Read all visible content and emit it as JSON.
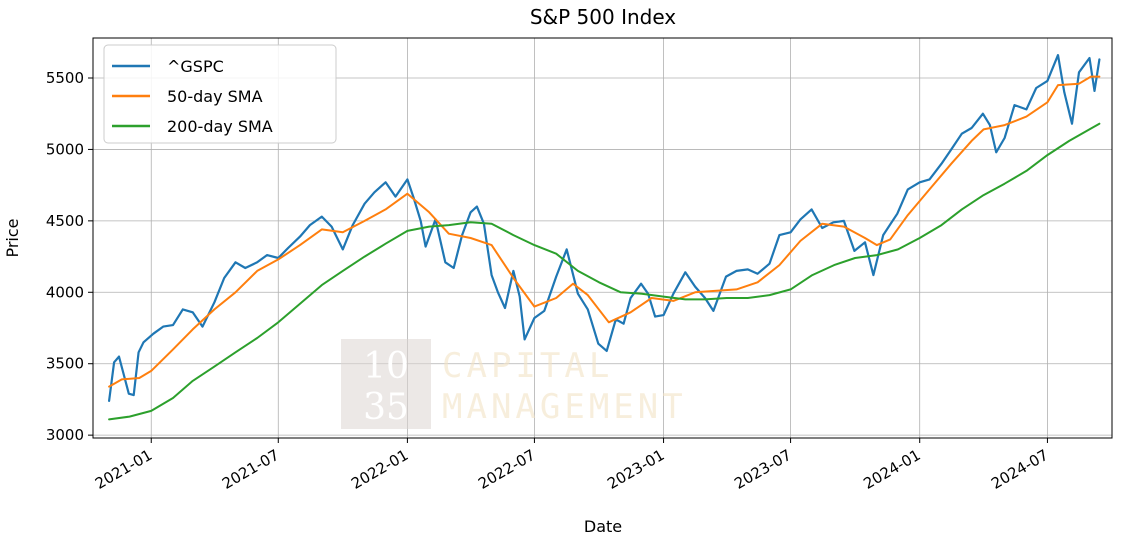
{
  "chart_data": {
    "type": "line",
    "title": "S&P 500 Index",
    "xlabel": "Date",
    "ylabel": "Price",
    "xlim": [
      "2020-10-10",
      "2024-10-01"
    ],
    "ylim": [
      2980,
      5780
    ],
    "xticks": [
      {
        "date": "2021-01-01",
        "label": "2021-01"
      },
      {
        "date": "2021-07-01",
        "label": "2021-07"
      },
      {
        "date": "2022-01-01",
        "label": "2022-01"
      },
      {
        "date": "2022-07-01",
        "label": "2022-07"
      },
      {
        "date": "2023-01-01",
        "label": "2023-01"
      },
      {
        "date": "2023-07-01",
        "label": "2023-07"
      },
      {
        "date": "2024-01-01",
        "label": "2024-01"
      },
      {
        "date": "2024-07-01",
        "label": "2024-07"
      }
    ],
    "yticks": [
      3000,
      3500,
      4000,
      4500,
      5000,
      5500
    ],
    "grid": true,
    "legend_position": "top-left",
    "series": [
      {
        "name": "^GSPC",
        "color": "#1f77b4",
        "points": [
          [
            "2020-11-02",
            3240
          ],
          [
            "2020-11-09",
            3510
          ],
          [
            "2020-11-16",
            3550
          ],
          [
            "2020-11-23",
            3420
          ],
          [
            "2020-11-30",
            3290
          ],
          [
            "2020-12-07",
            3280
          ],
          [
            "2020-12-14",
            3580
          ],
          [
            "2020-12-21",
            3650
          ],
          [
            "2021-01-04",
            3710
          ],
          [
            "2021-01-18",
            3760
          ],
          [
            "2021-02-01",
            3770
          ],
          [
            "2021-02-15",
            3880
          ],
          [
            "2021-03-01",
            3860
          ],
          [
            "2021-03-15",
            3760
          ],
          [
            "2021-04-01",
            3930
          ],
          [
            "2021-04-15",
            4100
          ],
          [
            "2021-05-01",
            4210
          ],
          [
            "2021-05-15",
            4170
          ],
          [
            "2021-06-01",
            4210
          ],
          [
            "2021-06-15",
            4260
          ],
          [
            "2021-07-01",
            4240
          ],
          [
            "2021-07-15",
            4310
          ],
          [
            "2021-08-01",
            4390
          ],
          [
            "2021-08-15",
            4470
          ],
          [
            "2021-09-01",
            4530
          ],
          [
            "2021-09-15",
            4460
          ],
          [
            "2021-10-01",
            4300
          ],
          [
            "2021-10-15",
            4470
          ],
          [
            "2021-11-01",
            4620
          ],
          [
            "2021-11-15",
            4700
          ],
          [
            "2021-12-01",
            4770
          ],
          [
            "2021-12-15",
            4670
          ],
          [
            "2022-01-01",
            4790
          ],
          [
            "2022-01-10",
            4660
          ],
          [
            "2022-01-20",
            4500
          ],
          [
            "2022-01-27",
            4320
          ],
          [
            "2022-02-10",
            4510
          ],
          [
            "2022-02-24",
            4210
          ],
          [
            "2022-03-08",
            4170
          ],
          [
            "2022-03-20",
            4400
          ],
          [
            "2022-04-01",
            4560
          ],
          [
            "2022-04-10",
            4600
          ],
          [
            "2022-04-20",
            4480
          ],
          [
            "2022-05-01",
            4120
          ],
          [
            "2022-05-10",
            4000
          ],
          [
            "2022-05-20",
            3890
          ],
          [
            "2022-06-01",
            4150
          ],
          [
            "2022-06-10",
            3970
          ],
          [
            "2022-06-17",
            3670
          ],
          [
            "2022-07-01",
            3820
          ],
          [
            "2022-07-15",
            3870
          ],
          [
            "2022-08-01",
            4110
          ],
          [
            "2022-08-16",
            4300
          ],
          [
            "2022-09-01",
            3990
          ],
          [
            "2022-09-15",
            3880
          ],
          [
            "2022-09-30",
            3640
          ],
          [
            "2022-10-12",
            3590
          ],
          [
            "2022-10-25",
            3810
          ],
          [
            "2022-11-05",
            3780
          ],
          [
            "2022-11-15",
            3960
          ],
          [
            "2022-11-30",
            4060
          ],
          [
            "2022-12-10",
            3990
          ],
          [
            "2022-12-20",
            3830
          ],
          [
            "2023-01-01",
            3840
          ],
          [
            "2023-01-15",
            3990
          ],
          [
            "2023-02-01",
            4140
          ],
          [
            "2023-02-15",
            4040
          ],
          [
            "2023-03-01",
            3960
          ],
          [
            "2023-03-13",
            3870
          ],
          [
            "2023-03-31",
            4110
          ],
          [
            "2023-04-15",
            4150
          ],
          [
            "2023-05-01",
            4160
          ],
          [
            "2023-05-15",
            4130
          ],
          [
            "2023-06-01",
            4200
          ],
          [
            "2023-06-15",
            4400
          ],
          [
            "2023-07-01",
            4420
          ],
          [
            "2023-07-15",
            4510
          ],
          [
            "2023-07-31",
            4580
          ],
          [
            "2023-08-15",
            4450
          ],
          [
            "2023-08-31",
            4490
          ],
          [
            "2023-09-15",
            4500
          ],
          [
            "2023-09-30",
            4290
          ],
          [
            "2023-10-15",
            4350
          ],
          [
            "2023-10-27",
            4120
          ],
          [
            "2023-11-10",
            4400
          ],
          [
            "2023-11-30",
            4550
          ],
          [
            "2023-12-15",
            4720
          ],
          [
            "2024-01-01",
            4770
          ],
          [
            "2024-01-15",
            4790
          ],
          [
            "2024-02-01",
            4900
          ],
          [
            "2024-02-15",
            5000
          ],
          [
            "2024-03-01",
            5110
          ],
          [
            "2024-03-15",
            5150
          ],
          [
            "2024-03-31",
            5250
          ],
          [
            "2024-04-10",
            5170
          ],
          [
            "2024-04-19",
            4980
          ],
          [
            "2024-05-01",
            5080
          ],
          [
            "2024-05-15",
            5310
          ],
          [
            "2024-06-01",
            5280
          ],
          [
            "2024-06-15",
            5430
          ],
          [
            "2024-07-01",
            5480
          ],
          [
            "2024-07-16",
            5660
          ],
          [
            "2024-07-25",
            5400
          ],
          [
            "2024-08-05",
            5180
          ],
          [
            "2024-08-15",
            5540
          ],
          [
            "2024-08-30",
            5640
          ],
          [
            "2024-09-06",
            5410
          ],
          [
            "2024-09-13",
            5630
          ]
        ]
      },
      {
        "name": "50-day SMA",
        "color": "#ff7f0e",
        "points": [
          [
            "2020-11-02",
            3340
          ],
          [
            "2020-11-20",
            3390
          ],
          [
            "2020-12-15",
            3400
          ],
          [
            "2021-01-01",
            3450
          ],
          [
            "2021-02-01",
            3600
          ],
          [
            "2021-03-01",
            3740
          ],
          [
            "2021-04-01",
            3880
          ],
          [
            "2021-05-01",
            4000
          ],
          [
            "2021-06-01",
            4150
          ],
          [
            "2021-07-01",
            4230
          ],
          [
            "2021-08-01",
            4330
          ],
          [
            "2021-09-01",
            4440
          ],
          [
            "2021-10-01",
            4420
          ],
          [
            "2021-11-01",
            4500
          ],
          [
            "2021-12-01",
            4580
          ],
          [
            "2022-01-01",
            4690
          ],
          [
            "2022-02-01",
            4560
          ],
          [
            "2022-03-01",
            4410
          ],
          [
            "2022-04-01",
            4380
          ],
          [
            "2022-05-01",
            4330
          ],
          [
            "2022-06-01",
            4100
          ],
          [
            "2022-07-01",
            3900
          ],
          [
            "2022-08-01",
            3960
          ],
          [
            "2022-08-25",
            4060
          ],
          [
            "2022-09-15",
            3980
          ],
          [
            "2022-10-15",
            3790
          ],
          [
            "2022-11-15",
            3860
          ],
          [
            "2022-12-15",
            3960
          ],
          [
            "2023-01-15",
            3940
          ],
          [
            "2023-02-15",
            4000
          ],
          [
            "2023-03-15",
            4010
          ],
          [
            "2023-04-15",
            4020
          ],
          [
            "2023-05-15",
            4070
          ],
          [
            "2023-06-15",
            4190
          ],
          [
            "2023-07-15",
            4360
          ],
          [
            "2023-08-15",
            4480
          ],
          [
            "2023-09-15",
            4460
          ],
          [
            "2023-10-15",
            4380
          ],
          [
            "2023-11-01",
            4330
          ],
          [
            "2023-11-20",
            4370
          ],
          [
            "2023-12-15",
            4540
          ],
          [
            "2024-01-15",
            4720
          ],
          [
            "2024-02-15",
            4900
          ],
          [
            "2024-03-15",
            5060
          ],
          [
            "2024-04-01",
            5140
          ],
          [
            "2024-05-01",
            5170
          ],
          [
            "2024-06-01",
            5230
          ],
          [
            "2024-07-01",
            5330
          ],
          [
            "2024-07-16",
            5450
          ],
          [
            "2024-08-15",
            5460
          ],
          [
            "2024-09-01",
            5510
          ],
          [
            "2024-09-13",
            5510
          ]
        ]
      },
      {
        "name": "200-day SMA",
        "color": "#2ca02c",
        "points": [
          [
            "2020-11-02",
            3110
          ],
          [
            "2020-12-01",
            3130
          ],
          [
            "2021-01-01",
            3170
          ],
          [
            "2021-02-01",
            3260
          ],
          [
            "2021-03-01",
            3380
          ],
          [
            "2021-04-01",
            3480
          ],
          [
            "2021-05-01",
            3580
          ],
          [
            "2021-06-01",
            3680
          ],
          [
            "2021-07-01",
            3790
          ],
          [
            "2021-08-01",
            3920
          ],
          [
            "2021-09-01",
            4050
          ],
          [
            "2021-10-01",
            4150
          ],
          [
            "2021-11-01",
            4250
          ],
          [
            "2021-12-01",
            4340
          ],
          [
            "2022-01-01",
            4430
          ],
          [
            "2022-02-01",
            4460
          ],
          [
            "2022-03-01",
            4470
          ],
          [
            "2022-04-01",
            4490
          ],
          [
            "2022-05-01",
            4480
          ],
          [
            "2022-06-01",
            4400
          ],
          [
            "2022-07-01",
            4330
          ],
          [
            "2022-08-01",
            4270
          ],
          [
            "2022-09-01",
            4150
          ],
          [
            "2022-10-01",
            4070
          ],
          [
            "2022-11-01",
            4000
          ],
          [
            "2022-12-01",
            3990
          ],
          [
            "2023-01-01",
            3970
          ],
          [
            "2023-02-01",
            3950
          ],
          [
            "2023-03-01",
            3950
          ],
          [
            "2023-04-01",
            3960
          ],
          [
            "2023-05-01",
            3960
          ],
          [
            "2023-06-01",
            3980
          ],
          [
            "2023-07-01",
            4020
          ],
          [
            "2023-08-01",
            4120
          ],
          [
            "2023-09-01",
            4190
          ],
          [
            "2023-10-01",
            4240
          ],
          [
            "2023-11-01",
            4260
          ],
          [
            "2023-12-01",
            4300
          ],
          [
            "2024-01-01",
            4380
          ],
          [
            "2024-02-01",
            4470
          ],
          [
            "2024-03-01",
            4580
          ],
          [
            "2024-04-01",
            4680
          ],
          [
            "2024-05-01",
            4760
          ],
          [
            "2024-06-01",
            4850
          ],
          [
            "2024-07-01",
            4960
          ],
          [
            "2024-08-01",
            5060
          ],
          [
            "2024-09-13",
            5180
          ]
        ]
      }
    ]
  },
  "watermark": {
    "line1": "10",
    "line2": "35",
    "word1": "CAPITAL",
    "word2": "MANAGEMENT"
  }
}
